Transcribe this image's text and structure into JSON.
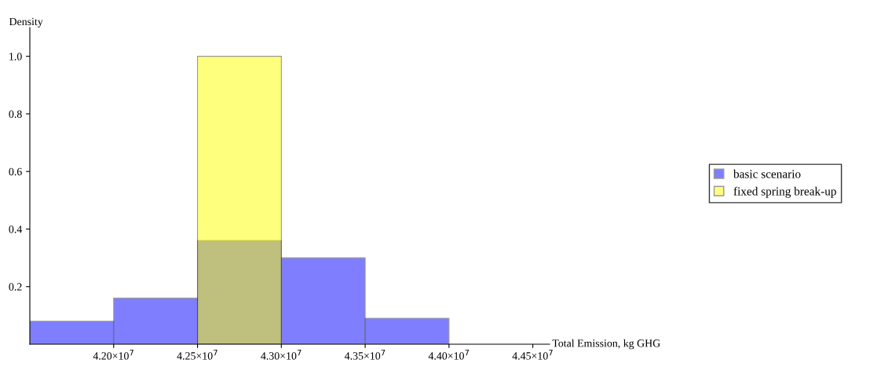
{
  "chart_data": {
    "type": "histogram",
    "xlabel": "Total Emission, kg GHG",
    "ylabel": "Density",
    "bins": [
      41500000,
      42000000,
      42500000,
      43000000,
      43500000,
      44000000
    ],
    "series": [
      {
        "name": "basic scenario",
        "color": "#0000ff",
        "values": [
          0.08,
          0.16,
          0.36,
          0.3,
          0.09
        ]
      },
      {
        "name": "fixed spring break-up",
        "color": "#ffff00",
        "values": [
          null,
          null,
          1.0,
          null,
          null
        ]
      }
    ],
    "xlim": [
      41500000,
      44600000
    ],
    "xticks": [
      {
        "value": 42000000,
        "label": "4.20×10$^{7}$"
      },
      {
        "value": 42500000,
        "label": "4.25×10$^{7}$"
      },
      {
        "value": 43000000,
        "label": "4.30×10$^{7}$"
      },
      {
        "value": 43500000,
        "label": "4.35×10$^{7}$"
      },
      {
        "value": 44000000,
        "label": "4.40×10$^{7}$"
      },
      {
        "value": 44500000,
        "label": "4.45×10$^{7}$"
      }
    ],
    "ylim": [
      0,
      1.1
    ],
    "yticks": [
      {
        "value": 0.2,
        "label": "0.2"
      },
      {
        "value": 0.4,
        "label": "0.4"
      },
      {
        "value": 0.6,
        "label": "0.6"
      },
      {
        "value": 0.8,
        "label": "0.8"
      },
      {
        "value": 1.0,
        "label": "1.0"
      }
    ],
    "grid": false,
    "legend": "right"
  }
}
